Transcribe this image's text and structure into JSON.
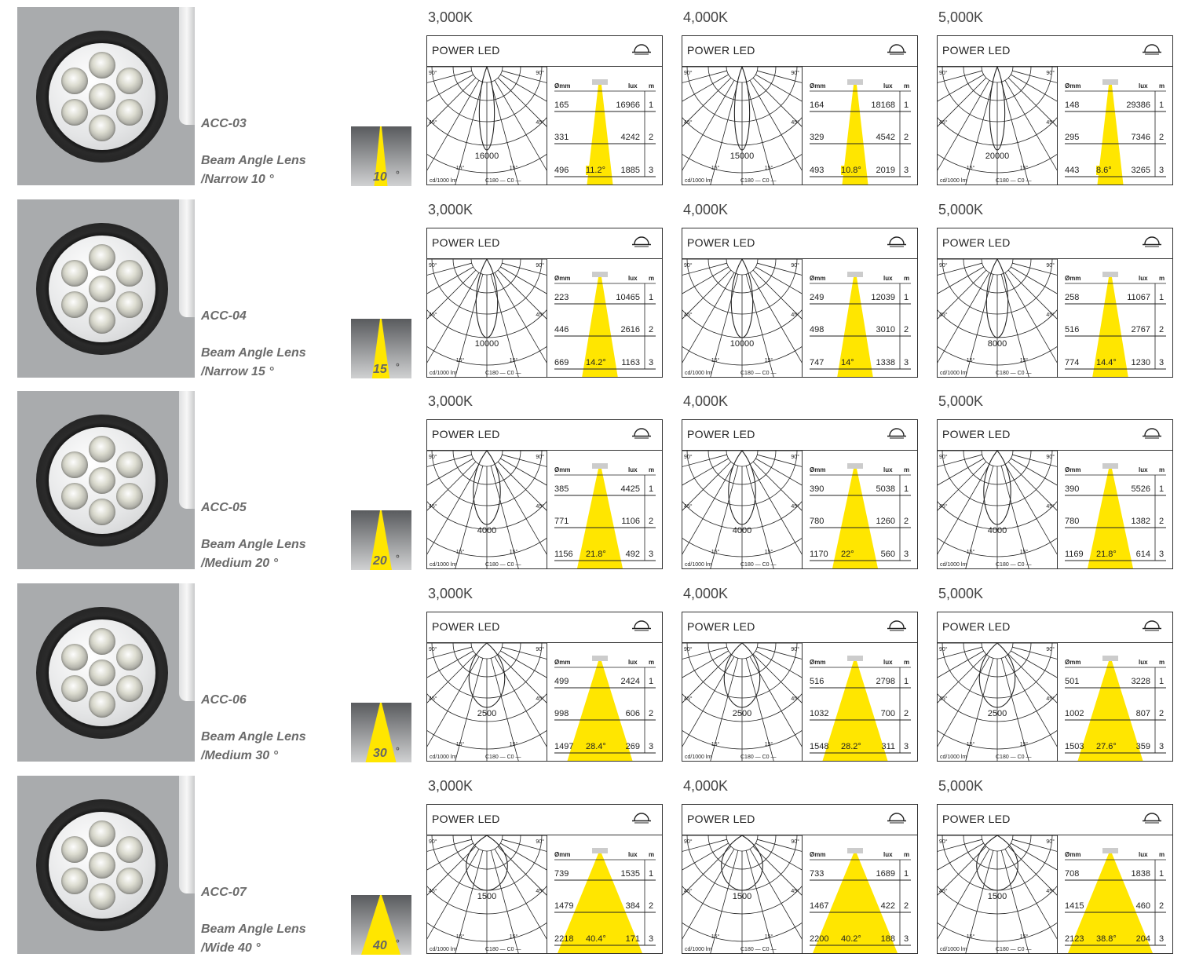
{
  "products": [
    {
      "model": "ACC-03",
      "lens_line1": "Beam Angle Lens",
      "lens_line2": "/Narrow 10 °",
      "beam_angle": "10",
      "beam_degree_symbol": "°",
      "lens_count": 6,
      "lens_color": "#dcdcdc",
      "charts": [
        {
          "temp": "3,000K",
          "title": "POWER LED",
          "peak": "16000",
          "rows": [
            {
              "dia": "165",
              "lux": "16966",
              "m": "1"
            },
            {
              "dia": "331",
              "lux": "4242",
              "m": "2"
            },
            {
              "dia": "496",
              "lux": "1885",
              "m": "3"
            }
          ],
          "angle": "11.2°"
        },
        {
          "temp": "4,000K",
          "title": "POWER LED",
          "peak": "15000",
          "rows": [
            {
              "dia": "164",
              "lux": "18168",
              "m": "1"
            },
            {
              "dia": "329",
              "lux": "4542",
              "m": "2"
            },
            {
              "dia": "493",
              "lux": "2019",
              "m": "3"
            }
          ],
          "angle": "10.8°"
        },
        {
          "temp": "5,000K",
          "title": "POWER LED",
          "peak": "20000",
          "rows": [
            {
              "dia": "148",
              "lux": "29386",
              "m": "1"
            },
            {
              "dia": "295",
              "lux": "7346",
              "m": "2"
            },
            {
              "dia": "443",
              "lux": "3265",
              "m": "3"
            }
          ],
          "angle": "8.6°"
        }
      ]
    },
    {
      "model": "ACC-04",
      "lens_line1": "Beam Angle Lens",
      "lens_line2": "/Narrow 15 °",
      "beam_angle": "15",
      "beam_degree_symbol": "°",
      "lens_count": 7,
      "lens_color": "#e8e8dc",
      "charts": [
        {
          "temp": "3,000K",
          "title": "POWER LED",
          "peak": "10000",
          "rows": [
            {
              "dia": "223",
              "lux": "10465",
              "m": "1"
            },
            {
              "dia": "446",
              "lux": "2616",
              "m": "2"
            },
            {
              "dia": "669",
              "lux": "1163",
              "m": "3"
            }
          ],
          "angle": "14.2°"
        },
        {
          "temp": "4,000K",
          "title": "POWER LED",
          "peak": "10000",
          "rows": [
            {
              "dia": "249",
              "lux": "12039",
              "m": "1"
            },
            {
              "dia": "498",
              "lux": "3010",
              "m": "2"
            },
            {
              "dia": "747",
              "lux": "1338",
              "m": "3"
            }
          ],
          "angle": "14°"
        },
        {
          "temp": "5,000K",
          "title": "POWER LED",
          "peak": "8000",
          "rows": [
            {
              "dia": "258",
              "lux": "11067",
              "m": "1"
            },
            {
              "dia": "516",
              "lux": "2767",
              "m": "2"
            },
            {
              "dia": "774",
              "lux": "1230",
              "m": "3"
            }
          ],
          "angle": "14.4°"
        }
      ]
    },
    {
      "model": "ACC-05",
      "lens_line1": "Beam Angle Lens",
      "lens_line2": "/Medium 20 °",
      "beam_angle": "20",
      "beam_degree_symbol": "°",
      "lens_count": 7,
      "lens_color": "#e8e8dc",
      "charts": [
        {
          "temp": "3,000K",
          "title": "POWER LED",
          "peak": "4000",
          "rows": [
            {
              "dia": "385",
              "lux": "4425",
              "m": "1"
            },
            {
              "dia": "771",
              "lux": "1106",
              "m": "2"
            },
            {
              "dia": "1156",
              "lux": "492",
              "m": "3"
            }
          ],
          "angle": "21.8°"
        },
        {
          "temp": "4,000K",
          "title": "POWER LED",
          "peak": "4000",
          "rows": [
            {
              "dia": "390",
              "lux": "5038",
              "m": "1"
            },
            {
              "dia": "780",
              "lux": "1260",
              "m": "2"
            },
            {
              "dia": "1170",
              "lux": "560",
              "m": "3"
            }
          ],
          "angle": "22°"
        },
        {
          "temp": "5,000K",
          "title": "POWER LED",
          "peak": "4000",
          "rows": [
            {
              "dia": "390",
              "lux": "5526",
              "m": "1"
            },
            {
              "dia": "780",
              "lux": "1382",
              "m": "2"
            },
            {
              "dia": "1169",
              "lux": "614",
              "m": "3"
            }
          ],
          "angle": "21.8°"
        }
      ]
    },
    {
      "model": "ACC-06",
      "lens_line1": "Beam Angle Lens",
      "lens_line2": "/Medium 30 °",
      "beam_angle": "30",
      "beam_degree_symbol": "°",
      "lens_count": 7,
      "lens_color": "#e8e8dc",
      "charts": [
        {
          "temp": "3,000K",
          "title": "POWER LED",
          "peak": "2500",
          "rows": [
            {
              "dia": "499",
              "lux": "2424",
              "m": "1"
            },
            {
              "dia": "998",
              "lux": "606",
              "m": "2"
            },
            {
              "dia": "1497",
              "lux": "269",
              "m": "3"
            }
          ],
          "angle": "28.4°"
        },
        {
          "temp": "4,000K",
          "title": "POWER LED",
          "peak": "2500",
          "rows": [
            {
              "dia": "516",
              "lux": "2798",
              "m": "1"
            },
            {
              "dia": "1032",
              "lux": "700",
              "m": "2"
            },
            {
              "dia": "1548",
              "lux": "311",
              "m": "3"
            }
          ],
          "angle": "28.2°"
        },
        {
          "temp": "5,000K",
          "title": "POWER LED",
          "peak": "2500",
          "rows": [
            {
              "dia": "501",
              "lux": "3228",
              "m": "1"
            },
            {
              "dia": "1002",
              "lux": "807",
              "m": "2"
            },
            {
              "dia": "1503",
              "lux": "359",
              "m": "3"
            }
          ],
          "angle": "27.6°"
        }
      ]
    },
    {
      "model": "ACC-07",
      "lens_line1": "Beam Angle Lens",
      "lens_line2": "/Wide 40 °",
      "beam_angle": "40",
      "beam_degree_symbol": "°",
      "lens_count": 7,
      "lens_color": "#e8e8dc",
      "charts": [
        {
          "temp": "3,000K",
          "title": "POWER LED",
          "peak": "1500",
          "rows": [
            {
              "dia": "739",
              "lux": "1535",
              "m": "1"
            },
            {
              "dia": "1479",
              "lux": "384",
              "m": "2"
            },
            {
              "dia": "2218",
              "lux": "171",
              "m": "3"
            }
          ],
          "angle": "40.4°"
        },
        {
          "temp": "4,000K",
          "title": "POWER LED",
          "peak": "1500",
          "rows": [
            {
              "dia": "733",
              "lux": "1689",
              "m": "1"
            },
            {
              "dia": "1467",
              "lux": "422",
              "m": "2"
            },
            {
              "dia": "2200",
              "lux": "188",
              "m": "3"
            }
          ],
          "angle": "40.2°"
        },
        {
          "temp": "5,000K",
          "title": "POWER LED",
          "peak": "1500",
          "rows": [
            {
              "dia": "708",
              "lux": "1838",
              "m": "1"
            },
            {
              "dia": "1415",
              "lux": "460",
              "m": "2"
            },
            {
              "dia": "2123",
              "lux": "204",
              "m": "3"
            }
          ],
          "angle": "38.8°"
        }
      ]
    }
  ],
  "labels": {
    "deg_90": "90°",
    "deg_45": "45°",
    "deg_15": "15°",
    "cd_unit": "cd/1000 lm",
    "c_legend": "C180 — C0 —",
    "col_dia": "Ømm",
    "col_lux": "lux",
    "col_m": "m"
  },
  "colors": {
    "cone": "#ffe600",
    "grid": "#222222",
    "photo_bg": "#a9abad"
  }
}
